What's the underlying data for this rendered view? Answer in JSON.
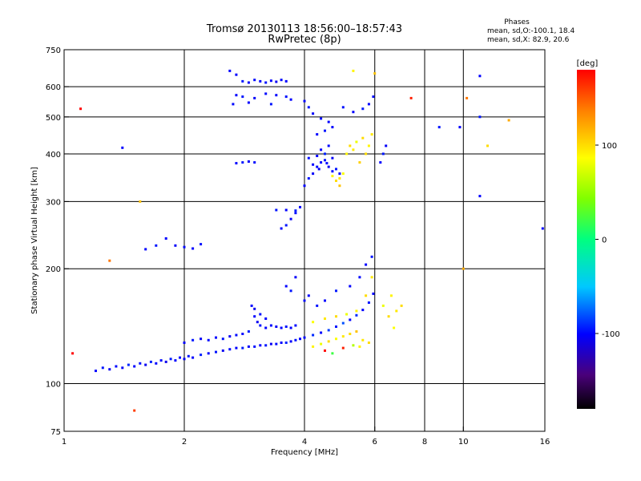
{
  "header": {
    "title_line1": "Tromsø 20130113 18:56:00–18:57:43",
    "title_line2": "RwPretec (8p)",
    "stats_heading": "Phases",
    "stats_line1": "mean, sd,O:-100.1, 18.4",
    "stats_line2": "mean, sd,X:  82.9, 20.6"
  },
  "colorbar": {
    "label": "[deg]",
    "ticks": [
      {
        "value": 100,
        "label": "100"
      },
      {
        "value": 0,
        "label": "0"
      },
      {
        "value": -100,
        "label": "-100"
      }
    ],
    "range": [
      -180,
      180
    ]
  },
  "chart_data": {
    "type": "scatter",
    "xlabel": "Frequency [MHz]",
    "ylabel": "Stationary phase Virtual Height [km]",
    "xscale": "log",
    "yscale": "log",
    "xlim": [
      1,
      16
    ],
    "ylim": [
      75,
      750
    ],
    "grid": true,
    "xticks": [
      {
        "value": 1,
        "label": "1"
      },
      {
        "value": 2,
        "label": "2"
      },
      {
        "value": 4,
        "label": "4"
      },
      {
        "value": 6,
        "label": "6"
      },
      {
        "value": 8,
        "label": "8"
      },
      {
        "value": 10,
        "label": "10"
      },
      {
        "value": 16,
        "label": "16"
      }
    ],
    "xgrid": [
      2,
      4,
      6,
      8,
      10
    ],
    "yticks": [
      {
        "value": 75,
        "label": "75"
      },
      {
        "value": 100,
        "label": "100"
      },
      {
        "value": 200,
        "label": "200"
      },
      {
        "value": 300,
        "label": "300"
      },
      {
        "value": 400,
        "label": "400"
      },
      {
        "value": 500,
        "label": "500"
      },
      {
        "value": 600,
        "label": "600"
      },
      {
        "value": 750,
        "label": "750"
      }
    ],
    "ygrid": [
      100,
      200,
      300,
      400,
      500,
      600
    ],
    "points": [
      [
        1.2,
        108,
        -100
      ],
      [
        1.25,
        110,
        -95
      ],
      [
        1.3,
        109,
        -105
      ],
      [
        1.35,
        111,
        -98
      ],
      [
        1.4,
        110,
        -102
      ],
      [
        1.45,
        112,
        -90
      ],
      [
        1.5,
        111,
        -100
      ],
      [
        1.55,
        113,
        -96
      ],
      [
        1.6,
        112,
        -104
      ],
      [
        1.65,
        114,
        -92
      ],
      [
        1.7,
        113,
        -100
      ],
      [
        1.75,
        115,
        -98
      ],
      [
        1.8,
        114,
        -106
      ],
      [
        1.85,
        116,
        -94
      ],
      [
        1.9,
        115,
        -100
      ],
      [
        1.95,
        117,
        -97
      ],
      [
        2.0,
        116,
        -103
      ],
      [
        2.05,
        118,
        -95
      ],
      [
        2.1,
        117,
        -100
      ],
      [
        2.2,
        119,
        -92
      ],
      [
        2.3,
        120,
        -100
      ],
      [
        2.4,
        121,
        -96
      ],
      [
        2.5,
        122,
        -104
      ],
      [
        2.6,
        123,
        -98
      ],
      [
        2.7,
        124,
        -100
      ],
      [
        2.8,
        124,
        -94
      ],
      [
        2.9,
        125,
        -102
      ],
      [
        3.0,
        125,
        -97
      ],
      [
        3.1,
        126,
        -100
      ],
      [
        3.2,
        126,
        -95
      ],
      [
        3.3,
        127,
        -103
      ],
      [
        3.4,
        127,
        -98
      ],
      [
        3.5,
        128,
        -100
      ],
      [
        3.6,
        128,
        -92
      ],
      [
        3.7,
        129,
        -101
      ],
      [
        3.8,
        130,
        -96
      ],
      [
        3.9,
        131,
        -100
      ],
      [
        4.0,
        132,
        -98
      ],
      [
        4.2,
        134,
        -90
      ],
      [
        4.4,
        136,
        -100
      ],
      [
        4.6,
        138,
        -85
      ],
      [
        4.8,
        141,
        -95
      ],
      [
        5.0,
        144,
        -80
      ],
      [
        5.2,
        147,
        -100
      ],
      [
        5.4,
        151,
        -90
      ],
      [
        5.6,
        156,
        -100
      ],
      [
        5.8,
        163,
        -95
      ],
      [
        5.95,
        172,
        -100
      ],
      [
        2.0,
        128,
        -100
      ],
      [
        2.1,
        130,
        -95
      ],
      [
        2.2,
        131,
        -102
      ],
      [
        2.3,
        130,
        -98
      ],
      [
        2.4,
        132,
        -100
      ],
      [
        2.5,
        131,
        -96
      ],
      [
        2.6,
        133,
        -104
      ],
      [
        2.7,
        134,
        -98
      ],
      [
        2.8,
        135,
        -100
      ],
      [
        2.9,
        137,
        -92
      ],
      [
        3.0,
        150,
        -100
      ],
      [
        3.05,
        145,
        -104
      ],
      [
        3.1,
        142,
        -96
      ],
      [
        3.2,
        140,
        -100
      ],
      [
        3.3,
        142,
        -98
      ],
      [
        3.4,
        141,
        -102
      ],
      [
        3.5,
        140,
        -100
      ],
      [
        3.6,
        141,
        -95
      ],
      [
        3.7,
        140,
        -100
      ],
      [
        3.8,
        142,
        -98
      ],
      [
        2.95,
        160,
        -100
      ],
      [
        3.0,
        157,
        -105
      ],
      [
        3.1,
        152,
        -96
      ],
      [
        3.2,
        148,
        -100
      ],
      [
        4.2,
        125,
        90
      ],
      [
        4.4,
        127,
        80
      ],
      [
        4.6,
        129,
        100
      ],
      [
        4.8,
        131,
        85
      ],
      [
        5.0,
        133,
        95
      ],
      [
        5.2,
        135,
        100
      ],
      [
        5.4,
        137,
        110
      ],
      [
        5.6,
        130,
        95
      ],
      [
        5.8,
        128,
        100
      ],
      [
        5.5,
        125,
        90
      ],
      [
        4.5,
        122,
        180
      ],
      [
        5.0,
        124,
        170
      ],
      [
        4.7,
        120,
        20
      ],
      [
        5.3,
        126,
        60
      ],
      [
        4.2,
        145,
        85
      ],
      [
        4.5,
        148,
        95
      ],
      [
        4.8,
        150,
        100
      ],
      [
        5.1,
        152,
        80
      ],
      [
        5.4,
        155,
        90
      ],
      [
        5.7,
        170,
        100
      ],
      [
        5.9,
        190,
        95
      ],
      [
        6.3,
        160,
        80
      ],
      [
        6.5,
        150,
        100
      ],
      [
        6.7,
        140,
        85
      ],
      [
        6.6,
        170,
        90
      ],
      [
        6.8,
        155,
        95
      ],
      [
        7.0,
        160,
        100
      ],
      [
        3.6,
        180,
        -100
      ],
      [
        3.7,
        175,
        -95
      ],
      [
        3.8,
        190,
        -102
      ],
      [
        4.0,
        165,
        -98
      ],
      [
        4.1,
        170,
        -100
      ],
      [
        4.3,
        160,
        -96
      ],
      [
        4.5,
        165,
        -100
      ],
      [
        4.8,
        175,
        -94
      ],
      [
        5.2,
        180,
        -100
      ],
      [
        5.5,
        190,
        -98
      ],
      [
        5.7,
        205,
        -100
      ],
      [
        5.9,
        215,
        -95
      ],
      [
        4.0,
        330,
        -100
      ],
      [
        4.1,
        345,
        -95
      ],
      [
        4.2,
        355,
        -102
      ],
      [
        4.3,
        370,
        -98
      ],
      [
        4.4,
        380,
        -100
      ],
      [
        4.5,
        385,
        -96
      ],
      [
        4.6,
        370,
        -104
      ],
      [
        4.7,
        360,
        -98
      ],
      [
        4.3,
        395,
        -100
      ],
      [
        4.5,
        400,
        -92
      ],
      [
        4.4,
        410,
        -100
      ],
      [
        4.6,
        420,
        -98
      ],
      [
        4.7,
        390,
        -102
      ],
      [
        4.2,
        375,
        -100
      ],
      [
        4.8,
        365,
        -95
      ],
      [
        4.9,
        355,
        -100
      ],
      [
        4.1,
        390,
        -97
      ],
      [
        4.35,
        365,
        -103
      ],
      [
        4.55,
        378,
        -99
      ],
      [
        4.7,
        350,
        90
      ],
      [
        4.8,
        340,
        100
      ],
      [
        4.9,
        345,
        95
      ],
      [
        5.0,
        355,
        85
      ],
      [
        5.1,
        400,
        90
      ],
      [
        5.2,
        420,
        100
      ],
      [
        5.3,
        410,
        95
      ],
      [
        5.4,
        430,
        80
      ],
      [
        5.6,
        440,
        100
      ],
      [
        5.8,
        420,
        90
      ],
      [
        5.9,
        450,
        95
      ],
      [
        5.7,
        400,
        100
      ],
      [
        5.5,
        380,
        105
      ],
      [
        4.9,
        330,
        110
      ],
      [
        4.0,
        550,
        -100
      ],
      [
        4.1,
        530,
        -95
      ],
      [
        4.2,
        510,
        -102
      ],
      [
        4.4,
        495,
        -98
      ],
      [
        4.6,
        485,
        -100
      ],
      [
        5.0,
        530,
        -96
      ],
      [
        5.3,
        515,
        -100
      ],
      [
        5.6,
        525,
        -94
      ],
      [
        5.8,
        540,
        -100
      ],
      [
        5.95,
        565,
        -98
      ],
      [
        4.3,
        450,
        -100
      ],
      [
        4.5,
        460,
        -95
      ],
      [
        4.7,
        470,
        -100
      ],
      [
        2.7,
        645,
        -100
      ],
      [
        2.8,
        620,
        -95
      ],
      [
        2.9,
        615,
        -102
      ],
      [
        3.0,
        625,
        -98
      ],
      [
        3.1,
        620,
        -100
      ],
      [
        3.2,
        615,
        -96
      ],
      [
        3.3,
        622,
        -100
      ],
      [
        3.4,
        618,
        -104
      ],
      [
        3.5,
        625,
        -98
      ],
      [
        3.6,
        620,
        -100
      ],
      [
        2.7,
        570,
        -100
      ],
      [
        2.8,
        565,
        -95
      ],
      [
        3.0,
        560,
        -102
      ],
      [
        3.2,
        575,
        -98
      ],
      [
        3.4,
        570,
        -100
      ],
      [
        3.6,
        565,
        -96
      ],
      [
        3.7,
        555,
        -100
      ],
      [
        2.65,
        540,
        -98
      ],
      [
        2.9,
        545,
        -100
      ],
      [
        3.3,
        540,
        -95
      ],
      [
        2.7,
        378,
        -100
      ],
      [
        2.8,
        380,
        -95
      ],
      [
        2.9,
        382,
        -102
      ],
      [
        3.0,
        380,
        -98
      ],
      [
        3.5,
        255,
        -100
      ],
      [
        3.6,
        260,
        -95
      ],
      [
        3.7,
        270,
        -102
      ],
      [
        3.8,
        280,
        -98
      ],
      [
        3.9,
        290,
        -100
      ],
      [
        3.4,
        285,
        -96
      ],
      [
        3.6,
        285,
        -100
      ],
      [
        3.8,
        284,
        -94
      ],
      [
        1.6,
        225,
        -100
      ],
      [
        1.7,
        230,
        -95
      ],
      [
        1.9,
        230,
        -102
      ],
      [
        2.0,
        228,
        -98
      ],
      [
        2.1,
        226,
        -100
      ],
      [
        2.2,
        232,
        -96
      ],
      [
        1.8,
        240,
        -100
      ],
      [
        6.2,
        380,
        -100
      ],
      [
        6.3,
        400,
        -95
      ],
      [
        6.4,
        420,
        -102
      ],
      [
        1.05,
        120,
        200
      ],
      [
        1.1,
        525,
        180
      ],
      [
        1.3,
        210,
        140
      ],
      [
        1.4,
        415,
        -100
      ],
      [
        1.55,
        300,
        110
      ],
      [
        1.5,
        85,
        160
      ],
      [
        2.6,
        660,
        -100
      ],
      [
        10.0,
        200,
        120
      ],
      [
        11.0,
        640,
        -100
      ],
      [
        11.0,
        500,
        -95
      ],
      [
        11.0,
        310,
        -100
      ],
      [
        11.5,
        420,
        100
      ],
      [
        13.0,
        490,
        120
      ],
      [
        15.8,
        255,
        -100
      ],
      [
        7.4,
        560,
        170
      ],
      [
        6.0,
        650,
        110
      ],
      [
        5.3,
        660,
        90
      ],
      [
        9.8,
        470,
        -100
      ],
      [
        10.2,
        560,
        140
      ],
      [
        8.7,
        470,
        -95
      ]
    ]
  }
}
